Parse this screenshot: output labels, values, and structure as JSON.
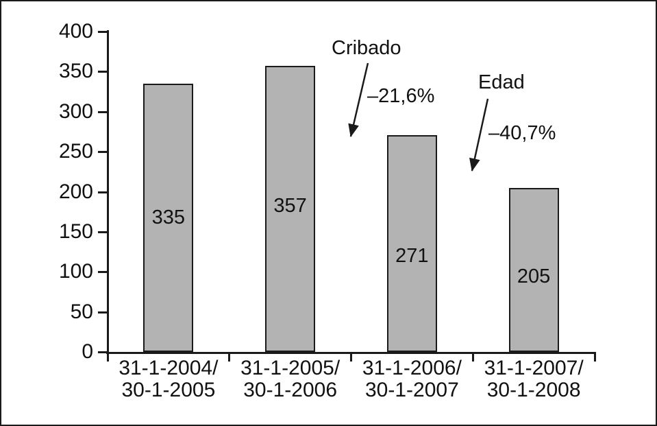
{
  "chart_data": {
    "type": "bar",
    "categories": [
      {
        "line1": "31-1-2004/",
        "line2": "30-1-2005"
      },
      {
        "line1": "31-1-2005/",
        "line2": "30-1-2006"
      },
      {
        "line1": "31-1-2006/",
        "line2": "30-1-2007"
      },
      {
        "line1": "31-1-2007/",
        "line2": "30-1-2008"
      }
    ],
    "values": [
      335,
      357,
      271,
      205
    ],
    "bar_labels": [
      "335",
      "357",
      "271",
      "205"
    ],
    "ylim": [
      0,
      400
    ],
    "yticks": [
      0,
      50,
      100,
      150,
      200,
      250,
      300,
      350,
      400
    ],
    "grid": false,
    "legend": false,
    "xlabel": "",
    "ylabel": "",
    "bar_fill_color": "#b3b3b3",
    "bar_border_color": "#1a1a1a",
    "axis_color": "#1a1a1a",
    "annotations": [
      {
        "label": "Cribado",
        "value": "–21,6%"
      },
      {
        "label": "Edad",
        "value": "–40,7%"
      }
    ]
  }
}
